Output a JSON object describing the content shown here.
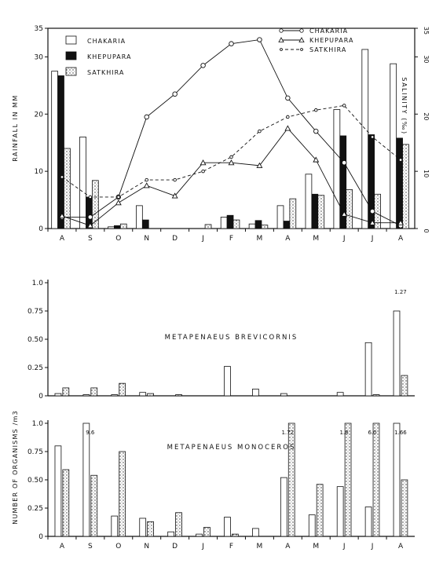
{
  "months": [
    "A",
    "S",
    "O",
    "N",
    "D",
    "J",
    "F",
    "M",
    "A",
    "M",
    "J",
    "J",
    "A"
  ],
  "chart_data": [
    {
      "type": "bar+line",
      "ylabel": "RAINFALL IN MM",
      "y2label": "SALINITY (‰)",
      "ylim": [
        0,
        35
      ],
      "yticks": [
        "0",
        "10",
        "20",
        "30",
        "35"
      ],
      "y2lim": [
        0,
        35
      ],
      "y2ticks": [
        "0",
        "10",
        "20",
        "30",
        "35"
      ],
      "bar_series": [
        {
          "name": "CHAKARIA",
          "fill": "open",
          "values": [
            27.5,
            16,
            0.3,
            4,
            0,
            0,
            2,
            0.8,
            4,
            9.5,
            20.8,
            31.3,
            28.8
          ]
        },
        {
          "name": "KHEPUPARA",
          "fill": "solid",
          "values": [
            26.7,
            5.5,
            0.5,
            1.5,
            0,
            0,
            2.3,
            1.4,
            1.3,
            6,
            16.2,
            16.4,
            15.8
          ]
        },
        {
          "name": "SATKHIRA",
          "fill": "dotted",
          "values": [
            14,
            8.4,
            0.8,
            0,
            0,
            0.7,
            1.5,
            0.6,
            5.2,
            5.8,
            6.8,
            6,
            14.7
          ]
        }
      ],
      "line_series": [
        {
          "name": "CHAKARIA",
          "style": "solid-circle",
          "values": [
            2,
            2,
            5.5,
            19.5,
            23.5,
            28.5,
            32.3,
            33,
            22.8,
            17,
            11.5,
            3,
            0.5
          ]
        },
        {
          "name": "KHEPUPARA",
          "style": "solid-triangle",
          "values": [
            2.2,
            0.5,
            4.5,
            7.5,
            5.7,
            11.5,
            11.5,
            11,
            17.5,
            12,
            2.5,
            1,
            1
          ]
        },
        {
          "name": "SATKHIRA",
          "style": "dashed-small-circle",
          "values": [
            9,
            5.5,
            5.5,
            8.5,
            8.5,
            10,
            12.5,
            17,
            19.5,
            20.7,
            21.5,
            16,
            12
          ]
        }
      ]
    },
    {
      "type": "bar",
      "title": "METAPENAEUS  BREVICORNIS",
      "ylim": [
        0,
        1.0
      ],
      "yticks": [
        "0",
        "0.25",
        "0.50",
        "0.75",
        "1.0"
      ],
      "series": [
        {
          "fill": "open",
          "values": [
            0.02,
            0.01,
            0.01,
            0.03,
            0,
            0,
            0.26,
            0.06,
            0.02,
            0,
            0.03,
            0.47,
            0.75
          ]
        },
        {
          "fill": "dotted",
          "values": [
            0.07,
            0.07,
            0.11,
            0.02,
            0.01,
            0,
            0,
            0,
            0,
            0,
            0,
            0.01,
            0.18
          ]
        }
      ],
      "annotations": [
        {
          "month_index": 12,
          "text": "1.27"
        }
      ]
    },
    {
      "type": "bar",
      "title": "METAPENAEUS  MONOCEROS",
      "ylabel": "NUMBER OF ORGANISMS /m3",
      "ylim": [
        0,
        1.0
      ],
      "yticks": [
        "0",
        "0.25",
        "0.50",
        "0.75",
        "1.0"
      ],
      "series": [
        {
          "fill": "open",
          "values": [
            0.8,
            1.0,
            0.18,
            0.16,
            0.04,
            0.02,
            0.17,
            0.07,
            0.52,
            0.19,
            0.44,
            0.26,
            1.0
          ]
        },
        {
          "fill": "dotted",
          "values": [
            0.59,
            0.54,
            0.75,
            0.13,
            0.21,
            0.08,
            0.02,
            0,
            1.0,
            0.46,
            1.0,
            1.0,
            0.5
          ]
        }
      ],
      "annotations": [
        {
          "month_index": 1,
          "text": "9.6"
        },
        {
          "month_index": 8,
          "text": "1.72"
        },
        {
          "month_index": 10,
          "text": "1.8"
        },
        {
          "month_index": 11,
          "text": "6.0"
        },
        {
          "month_index": 12,
          "text": "1.66"
        }
      ]
    }
  ]
}
